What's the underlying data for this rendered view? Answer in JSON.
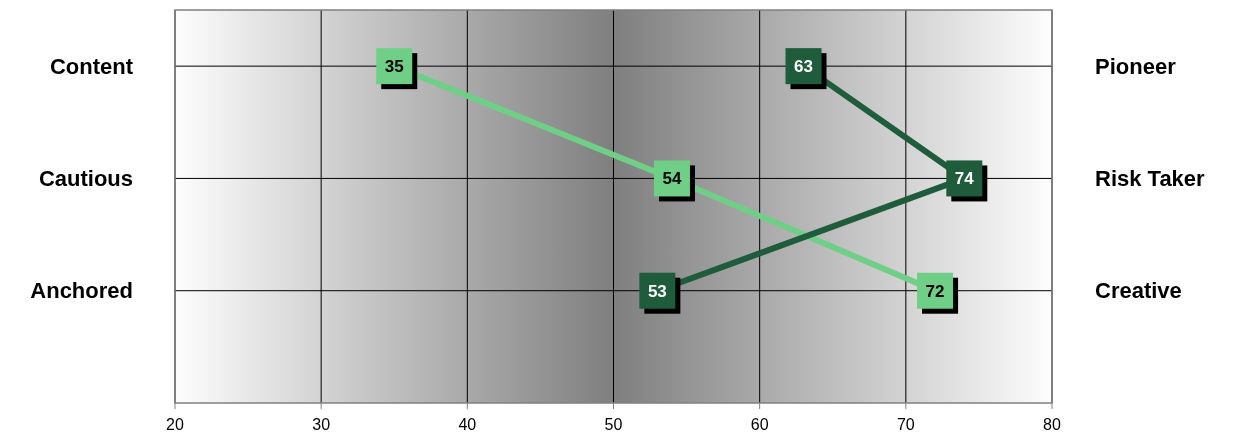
{
  "chart_data": {
    "type": "line",
    "orientation": "horizontal",
    "categories": [
      "Content",
      "Cautious",
      "Anchored"
    ],
    "y2_categories": [
      "Pioneer",
      "Risk Taker",
      "Creative"
    ],
    "series": [
      {
        "color": "#6fcf87",
        "values": [
          35,
          54,
          72
        ]
      },
      {
        "color": "#1e5c3c",
        "values": [
          63,
          74,
          53
        ]
      }
    ],
    "xlim": [
      20,
      80
    ],
    "xticks": [
      20,
      30,
      40,
      50,
      60,
      70,
      80
    ],
    "grid": true,
    "data_labels": true,
    "marker": "square"
  }
}
